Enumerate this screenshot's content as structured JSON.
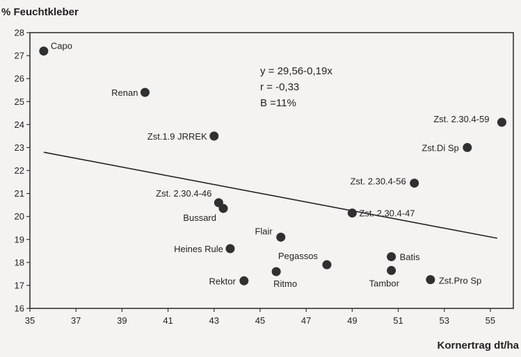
{
  "chart_data": {
    "type": "scatter",
    "ylabel": "% Feuchtkleber",
    "xlabel": "Kornertrag dt/ha",
    "xlim": [
      35,
      56
    ],
    "ylim": [
      16,
      28
    ],
    "xticks": [
      "35",
      "37",
      "39",
      "41",
      "43",
      "45",
      "47",
      "49",
      "51",
      "53",
      "55"
    ],
    "yticks": [
      "16",
      "17",
      "18",
      "19",
      "20",
      "21",
      "22",
      "23",
      "24",
      "25",
      "26",
      "27",
      "28"
    ],
    "grid": false,
    "annotation": [
      "y = 29,56-0,19x",
      "r = -0,33",
      "B =11%"
    ],
    "trendline": {
      "intercept": 29.56,
      "slope": -0.19,
      "x_start": 35.6,
      "x_end": 55.3
    },
    "points": [
      {
        "label": "Capo",
        "x": 35.6,
        "y": 27.2
      },
      {
        "label": "Renan",
        "x": 40.0,
        "y": 25.4
      },
      {
        "label": "Zst.1.9 JRREK",
        "x": 43.0,
        "y": 23.5
      },
      {
        "label": "Zst. 2.30.4-46",
        "x": 43.2,
        "y": 20.6
      },
      {
        "label": "Bussard",
        "x": 43.4,
        "y": 20.35
      },
      {
        "label": "Heines Rule",
        "x": 43.7,
        "y": 18.6
      },
      {
        "label": "Rektor",
        "x": 44.3,
        "y": 17.2
      },
      {
        "label": "Ritmo",
        "x": 45.7,
        "y": 17.6
      },
      {
        "label": "Flair",
        "x": 45.9,
        "y": 19.1
      },
      {
        "label": "Pegassos",
        "x": 47.9,
        "y": 17.9
      },
      {
        "label": "Zst. 2.30.4-47",
        "x": 49.0,
        "y": 20.15
      },
      {
        "label": "Batis",
        "x": 50.7,
        "y": 18.25
      },
      {
        "label": "Tambor",
        "x": 50.7,
        "y": 17.65
      },
      {
        "label": "Zst. 2.30.4-56",
        "x": 51.7,
        "y": 21.45
      },
      {
        "label": "Zst.Pro Sp",
        "x": 52.4,
        "y": 17.25
      },
      {
        "label": "Zst.Di Sp",
        "x": 54.0,
        "y": 23.0
      },
      {
        "label": "Zst. 2.30.4-59",
        "x": 55.5,
        "y": 24.1
      }
    ]
  }
}
